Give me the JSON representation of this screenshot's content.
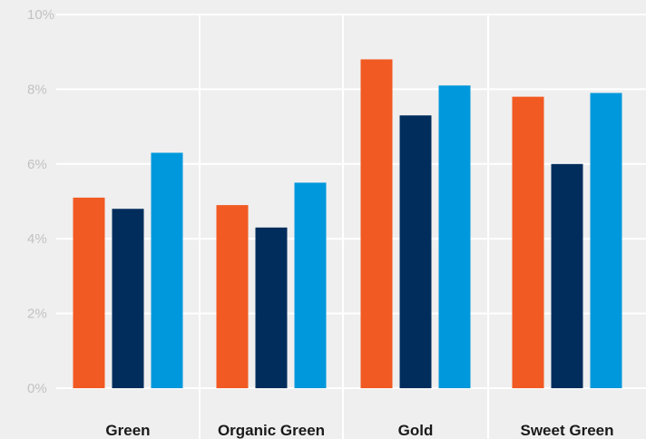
{
  "chart_data": {
    "type": "bar",
    "categories": [
      "Green",
      "Organic Green",
      "Gold",
      "Sweet Green"
    ],
    "series": [
      {
        "values": [
          5.1,
          4.9,
          8.8,
          7.8
        ],
        "color": "#f15a22"
      },
      {
        "values": [
          4.8,
          4.3,
          7.3,
          6.0
        ],
        "color": "#002d5c"
      },
      {
        "values": [
          6.3,
          5.5,
          8.1,
          7.9
        ],
        "color": "#0098dc"
      }
    ],
    "yticks": [
      0,
      2,
      4,
      6,
      8,
      10
    ],
    "ytick_labels": [
      "0%",
      "2%",
      "4%",
      "6%",
      "8%",
      "10%"
    ],
    "ylim": [
      0,
      10
    ],
    "grid": true,
    "legend": "none",
    "title": "",
    "xlabel": "",
    "ylabel": ""
  }
}
